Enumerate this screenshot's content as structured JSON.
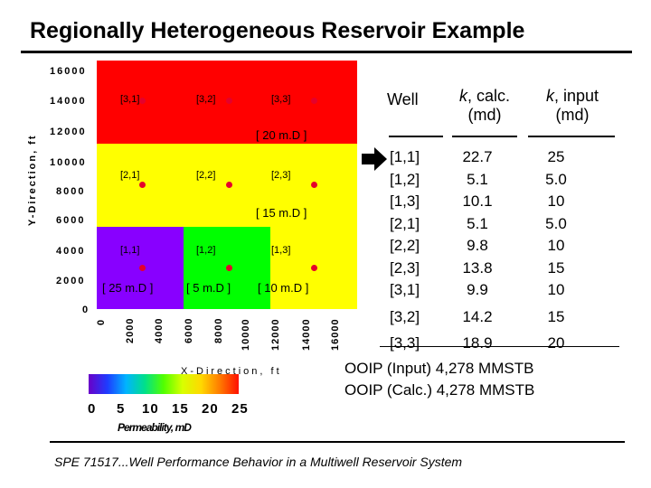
{
  "slide": {
    "title": "Regionally Heterogeneous Reservoir Example",
    "footer": "SPE 71517...Well Performance Behavior in a Multiwell Reservoir System"
  },
  "map": {
    "y_axis_label": "Y-Direction, ft",
    "x_axis_label": "X-Direction, ft",
    "y_ticks": [
      "16000",
      "14000",
      "12000",
      "10000",
      "8000",
      "6000",
      "4000",
      "2000",
      "0"
    ],
    "x_ticks": [
      "0",
      "2000",
      "4000",
      "6000",
      "8000",
      "10000",
      "12000",
      "14000",
      "16000"
    ],
    "zones": [
      {
        "label": "[ 20 m.D ]",
        "color": "#ff0000",
        "permeability_md": 20
      },
      {
        "label": "[ 15 m.D ]",
        "color": "#ffff00",
        "permeability_md": 15
      },
      {
        "label": "[ 25 m.D ]",
        "color": "#8800ff",
        "permeability_md": 25
      },
      {
        "label": "[ 5 m.D ]",
        "color": "#00ff00",
        "permeability_md": 5
      },
      {
        "label": "[ 10 m.D ]",
        "color": "#ffff00",
        "permeability_md": 10
      }
    ],
    "cells": {
      "r3": [
        "[3,1]",
        "[3,2]",
        "[3,3]"
      ],
      "r2": [
        "[2,1]",
        "[2,2]",
        "[2,3]"
      ],
      "r1": [
        "[1,1]",
        "[1,2]",
        "[1,3]"
      ]
    },
    "well_marker_color": "#e5002b"
  },
  "colorbar": {
    "ticks": [
      "0",
      "5",
      "10",
      "15",
      "20",
      "25"
    ],
    "label": "Permeability, mD"
  },
  "table": {
    "headers": {
      "well": "Well",
      "calc_k": "k",
      "calc_suffix": ", calc.",
      "calc_unit": "(md)",
      "input_k": "k",
      "input_suffix": ", input",
      "input_unit": "(md)"
    },
    "rows": [
      {
        "well": "[1,1]",
        "calc": "22.7",
        "input": "25"
      },
      {
        "well": "[1,2]",
        "calc": "5.1",
        "input": "5.0"
      },
      {
        "well": "[1,3]",
        "calc": "10.1",
        "input": "10"
      },
      {
        "well": "[2,1]",
        "calc": "5.1",
        "input": "5.0"
      },
      {
        "well": "[2,2]",
        "calc": "9.8",
        "input": "10"
      },
      {
        "well": "[2,3]",
        "calc": "13.8",
        "input": "15"
      },
      {
        "well": "[3,1]",
        "calc": "9.9",
        "input": "10"
      },
      {
        "well": "[3,2]",
        "calc": "14.2",
        "input": "15"
      },
      {
        "well": "[3,3]",
        "calc": "18.9",
        "input": "20"
      }
    ]
  },
  "ooip": {
    "input": "OOIP (Input) 4,278 MMSTB",
    "calc": "OOIP (Calc.) 4,278 MMSTB"
  }
}
